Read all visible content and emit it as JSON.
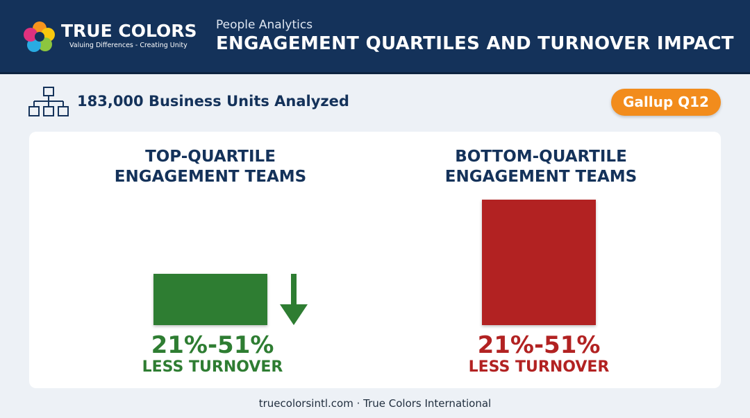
{
  "header": {
    "logo_name": "TRUE COLORS",
    "logo_tagline": "Valuing Differences - Creating Unity",
    "kicker": "People Analytics",
    "title": "ENGAGEMENT QUARTILES AND TURNOVER IMPACT"
  },
  "subheader": {
    "text": "183,000 Business Units Analyzed",
    "badge": "Gallup Q12"
  },
  "panels": [
    {
      "title_lines": [
        "TOP-QUARTILE",
        "ENGAGEMENT TEAMS"
      ],
      "stat": "21%-51%",
      "caption": "LESS TURNOVER"
    },
    {
      "title_lines": [
        "BOTTOM-QUARTILE",
        "ENGAGEMENT TEAMS"
      ],
      "stat": "21%-51%",
      "caption": "LESS TURNOVER"
    }
  ],
  "footer": {
    "text": "truecolorsintl.com · True Colors International"
  }
}
